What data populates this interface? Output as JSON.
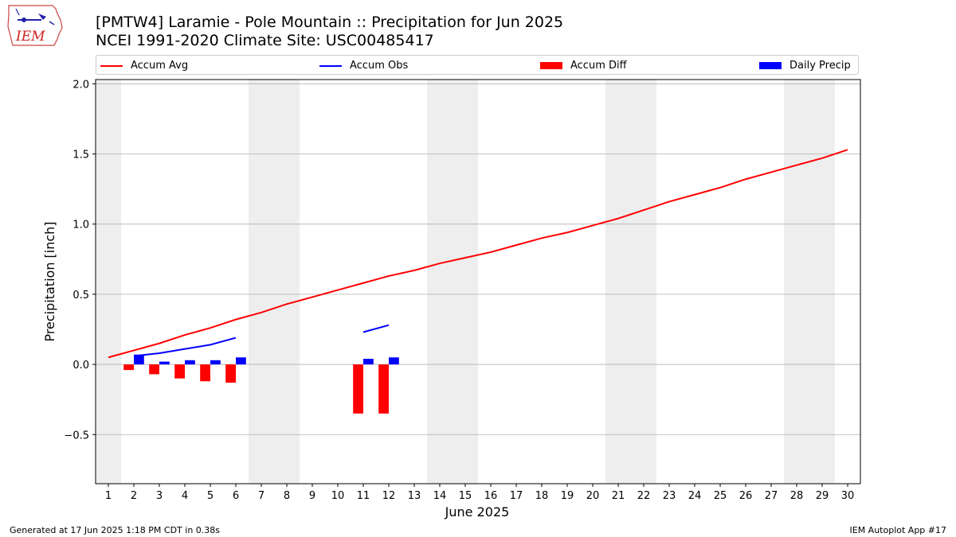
{
  "logo": {
    "text": "IEM"
  },
  "title": {
    "line1": "[PMTW4] Laramie - Pole Mountain :: Precipitation for Jun 2025",
    "line2": "NCEI 1991-2020 Climate Site: USC00485417"
  },
  "footer": {
    "left": "Generated at 17 Jun 2025 1:18 PM CDT in 0.38s",
    "right": "IEM Autoplot App #17"
  },
  "colors": {
    "avg": "#ff0000",
    "obs": "#0000ff",
    "diff": "#ff0000",
    "daily": "#0000ff",
    "weekend_shade": "#eeeeee",
    "grid": "#b0b0b0"
  },
  "chart_data": {
    "type": "line",
    "xlabel": "June 2025",
    "ylabel": "Precipitation [inch]",
    "xlim": [
      0.5,
      30.5
    ],
    "ylim": [
      -0.85,
      2.03
    ],
    "x_ticks": [
      1,
      2,
      3,
      4,
      5,
      6,
      7,
      8,
      9,
      10,
      11,
      12,
      13,
      14,
      15,
      16,
      17,
      18,
      19,
      20,
      21,
      22,
      23,
      24,
      25,
      26,
      27,
      28,
      29,
      30
    ],
    "y_ticks": [
      -0.5,
      0.0,
      0.5,
      1.0,
      1.5,
      2.0
    ],
    "y_tick_labels": [
      "−0.5",
      "0.0",
      "0.5",
      "1.0",
      "1.5",
      "2.0"
    ],
    "grid": "horizontal",
    "legend": {
      "placement": "top",
      "entries": [
        {
          "label": "Accum Avg",
          "kind": "line",
          "color": "#ff0000"
        },
        {
          "label": "Accum Obs",
          "kind": "line",
          "color": "#0000ff"
        },
        {
          "label": "Accum Diff",
          "kind": "bar",
          "color": "#ff0000"
        },
        {
          "label": "Daily Precip",
          "kind": "bar",
          "color": "#0000ff"
        }
      ]
    },
    "weekend_shading": [
      1,
      7,
      8,
      14,
      15,
      21,
      22,
      28,
      29
    ],
    "series": [
      {
        "name": "Accum Avg",
        "type": "line",
        "x": [
          1,
          2,
          3,
          4,
          5,
          6,
          7,
          8,
          9,
          10,
          11,
          12,
          13,
          14,
          15,
          16,
          17,
          18,
          19,
          20,
          21,
          22,
          23,
          24,
          25,
          26,
          27,
          28,
          29,
          30
        ],
        "values": [
          0.05,
          0.1,
          0.15,
          0.21,
          0.26,
          0.32,
          0.37,
          0.43,
          0.48,
          0.53,
          0.58,
          0.63,
          0.67,
          0.72,
          0.76,
          0.8,
          0.85,
          0.9,
          0.94,
          0.99,
          1.04,
          1.1,
          1.16,
          1.21,
          1.26,
          1.32,
          1.37,
          1.42,
          1.47,
          1.53
        ]
      },
      {
        "name": "Accum Obs",
        "type": "line",
        "segments": [
          {
            "x": [
              2,
              3,
              4,
              5,
              6
            ],
            "values": [
              0.06,
              0.08,
              0.11,
              0.14,
              0.19
            ]
          },
          {
            "x": [
              11,
              12
            ],
            "values": [
              0.23,
              0.28
            ]
          }
        ]
      },
      {
        "name": "Accum Diff",
        "type": "bar",
        "x": [
          2,
          3,
          4,
          5,
          6,
          11,
          12
        ],
        "values": [
          -0.04,
          -0.07,
          -0.1,
          -0.12,
          -0.13,
          -0.35,
          -0.35
        ]
      },
      {
        "name": "Daily Precip",
        "type": "bar",
        "x": [
          2,
          3,
          4,
          5,
          6,
          11,
          12
        ],
        "values": [
          0.07,
          0.02,
          0.03,
          0.03,
          0.05,
          0.04,
          0.05
        ]
      }
    ]
  }
}
